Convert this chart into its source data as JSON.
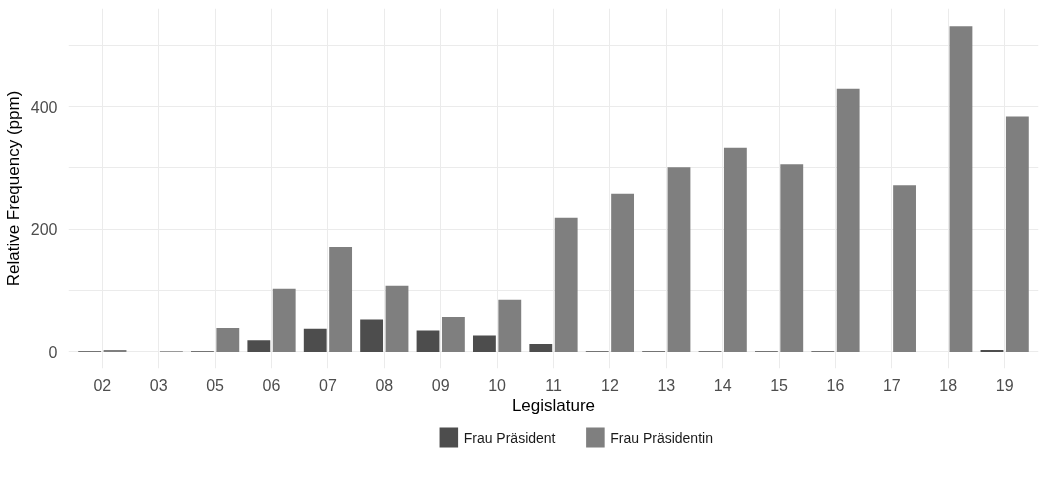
{
  "chart_data": {
    "type": "bar",
    "xlabel": "Legislature",
    "ylabel": "Relative Frequency (ppm)",
    "categories": [
      "02",
      "03",
      "05",
      "06",
      "07",
      "08",
      "09",
      "10",
      "11",
      "12",
      "13",
      "14",
      "15",
      "16",
      "17",
      "18",
      "19"
    ],
    "series": [
      {
        "name": "Frau Präsident",
        "color": "#4d4d4d",
        "values": [
          1,
          0,
          1,
          19,
          38,
          53,
          35,
          27,
          13,
          1,
          1,
          1,
          1,
          1,
          0,
          0,
          3
        ]
      },
      {
        "name": "Frau Präsidentin",
        "color": "#7f7f7f",
        "values": [
          3,
          1,
          39,
          103,
          171,
          108,
          57,
          85,
          219,
          258,
          301,
          333,
          306,
          429,
          272,
          531,
          384
        ]
      }
    ],
    "ylim": [
      -27,
      560
    ],
    "yticks": [
      0,
      {
        "value": 100,
        "label": null
      },
      200,
      {
        "value": 300,
        "label": null
      },
      400,
      {
        "value": 500,
        "label": null
      }
    ],
    "grid": true,
    "legend": "bottom"
  }
}
